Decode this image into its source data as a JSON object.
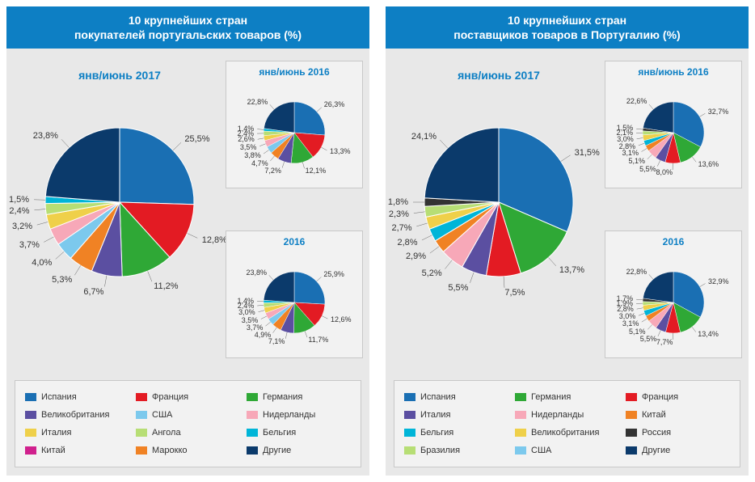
{
  "panels": [
    {
      "title_line1": "10 крупнейших стран",
      "title_line2": "покупателей португальских товаров (%)",
      "main": {
        "title": "янв/июнь 2017",
        "type": "pie",
        "radius": 92,
        "slices": [
          {
            "label": "25,5%",
            "value": 25.5,
            "color": "#1a6fb3"
          },
          {
            "label": "12,8%",
            "value": 12.8,
            "color": "#e31b23"
          },
          {
            "label": "11,2%",
            "value": 11.2,
            "color": "#2fa836"
          },
          {
            "label": "6,7%",
            "value": 6.7,
            "color": "#5b4fa1"
          },
          {
            "label": "5,3%",
            "value": 5.3,
            "color": "#f08224"
          },
          {
            "label": "4,0%",
            "value": 4.0,
            "color": "#7cc9ed"
          },
          {
            "label": "3,7%",
            "value": 3.7,
            "color": "#f7a8b8"
          },
          {
            "label": "3,2%",
            "value": 3.2,
            "color": "#efd04a"
          },
          {
            "label": "2,4%",
            "value": 2.4,
            "color": "#b7de75"
          },
          {
            "label": "1,5%",
            "value": 1.5,
            "color": "#00b5d8"
          },
          {
            "label": "23,8%",
            "value": 23.8,
            "color": "#0b3a6b"
          }
        ]
      },
      "small1": {
        "title": "янв/июнь 2016",
        "type": "pie",
        "radius": 38,
        "slices": [
          {
            "label": "26,3%",
            "value": 26.3,
            "color": "#1a6fb3"
          },
          {
            "label": "13,3%",
            "value": 13.3,
            "color": "#e31b23"
          },
          {
            "label": "12,1%",
            "value": 12.1,
            "color": "#2fa836"
          },
          {
            "label": "7,2%",
            "value": 7.2,
            "color": "#5b4fa1"
          },
          {
            "label": "4,7%",
            "value": 4.7,
            "color": "#f08224"
          },
          {
            "label": "3,8%",
            "value": 3.8,
            "color": "#7cc9ed"
          },
          {
            "label": "3,5%",
            "value": 3.5,
            "color": "#f7a8b8"
          },
          {
            "label": "2,6%",
            "value": 2.6,
            "color": "#efd04a"
          },
          {
            "label": "2,4%",
            "value": 2.4,
            "color": "#b7de75"
          },
          {
            "label": "1,4%",
            "value": 1.4,
            "color": "#00b5d8"
          },
          {
            "label": "22,8%",
            "value": 22.8,
            "color": "#0b3a6b"
          }
        ]
      },
      "small2": {
        "title": "2016",
        "type": "pie",
        "radius": 38,
        "slices": [
          {
            "label": "25,9%",
            "value": 25.9,
            "color": "#1a6fb3"
          },
          {
            "label": "12,6%",
            "value": 12.6,
            "color": "#e31b23"
          },
          {
            "label": "11,7%",
            "value": 11.7,
            "color": "#2fa836"
          },
          {
            "label": "7,1%",
            "value": 7.1,
            "color": "#5b4fa1"
          },
          {
            "label": "4,9%",
            "value": 4.9,
            "color": "#f08224"
          },
          {
            "label": "3,7%",
            "value": 3.7,
            "color": "#7cc9ed"
          },
          {
            "label": "3,5%",
            "value": 3.5,
            "color": "#f7a8b8"
          },
          {
            "label": "3,0%",
            "value": 3.0,
            "color": "#efd04a"
          },
          {
            "label": "2,4%",
            "value": 2.4,
            "color": "#b7de75"
          },
          {
            "label": "1,4%",
            "value": 1.4,
            "color": "#00b5d8"
          },
          {
            "label": "23,8%",
            "value": 23.8,
            "color": "#0b3a6b"
          }
        ]
      },
      "legend": [
        {
          "label": "Испания",
          "color": "#1a6fb3"
        },
        {
          "label": "Франция",
          "color": "#e31b23"
        },
        {
          "label": "Германия",
          "color": "#2fa836"
        },
        {
          "label": "Великобритания",
          "color": "#5b4fa1"
        },
        {
          "label": "США",
          "color": "#7cc9ed"
        },
        {
          "label": "Нидерланды",
          "color": "#f7a8b8"
        },
        {
          "label": "Италия",
          "color": "#efd04a"
        },
        {
          "label": "Ангола",
          "color": "#b7de75"
        },
        {
          "label": "Бельгия",
          "color": "#00b5d8"
        },
        {
          "label": "Китай",
          "color": "#d0208d"
        },
        {
          "label": "Марокко",
          "color": "#f08224"
        },
        {
          "label": "Другие",
          "color": "#0b3a6b"
        }
      ]
    },
    {
      "title_line1": "10 крупнейших стран",
      "title_line2": "поставщиков товаров в Португалию (%)",
      "main": {
        "title": "янв/июнь 2017",
        "type": "pie",
        "radius": 92,
        "slices": [
          {
            "label": "31,5%",
            "value": 31.5,
            "color": "#1a6fb3"
          },
          {
            "label": "13,7%",
            "value": 13.7,
            "color": "#2fa836"
          },
          {
            "label": "7,5%",
            "value": 7.5,
            "color": "#e31b23"
          },
          {
            "label": "5,5%",
            "value": 5.5,
            "color": "#5b4fa1"
          },
          {
            "label": "5,2%",
            "value": 5.2,
            "color": "#f7a8b8"
          },
          {
            "label": "2,9%",
            "value": 2.9,
            "color": "#f08224"
          },
          {
            "label": "2,8%",
            "value": 2.8,
            "color": "#00b5d8"
          },
          {
            "label": "2,7%",
            "value": 2.7,
            "color": "#efd04a"
          },
          {
            "label": "2,3%",
            "value": 2.3,
            "color": "#b7de75"
          },
          {
            "label": "1,8%",
            "value": 1.8,
            "color": "#333333"
          },
          {
            "label": "24,1%",
            "value": 24.1,
            "color": "#0b3a6b"
          }
        ]
      },
      "small1": {
        "title": "янв/июнь 2016",
        "type": "pie",
        "radius": 38,
        "slices": [
          {
            "label": "32,7%",
            "value": 32.7,
            "color": "#1a6fb3"
          },
          {
            "label": "13,6%",
            "value": 13.6,
            "color": "#2fa836"
          },
          {
            "label": "8,0%",
            "value": 8.0,
            "color": "#e31b23"
          },
          {
            "label": "5,5%",
            "value": 5.5,
            "color": "#5b4fa1"
          },
          {
            "label": "5,1%",
            "value": 5.1,
            "color": "#f7a8b8"
          },
          {
            "label": "3,1%",
            "value": 3.1,
            "color": "#f08224"
          },
          {
            "label": "2,8%",
            "value": 2.8,
            "color": "#00b5d8"
          },
          {
            "label": "3,0%",
            "value": 3.0,
            "color": "#efd04a"
          },
          {
            "label": "2,1%",
            "value": 2.1,
            "color": "#b7de75"
          },
          {
            "label": "1,5%",
            "value": 1.5,
            "color": "#333333"
          },
          {
            "label": "22,6%",
            "value": 22.6,
            "color": "#0b3a6b"
          }
        ]
      },
      "small2": {
        "title": "2016",
        "type": "pie",
        "radius": 38,
        "slices": [
          {
            "label": "32,9%",
            "value": 32.9,
            "color": "#1a6fb3"
          },
          {
            "label": "13,4%",
            "value": 13.4,
            "color": "#2fa836"
          },
          {
            "label": "7,7%",
            "value": 7.7,
            "color": "#e31b23"
          },
          {
            "label": "5,5%",
            "value": 5.5,
            "color": "#5b4fa1"
          },
          {
            "label": "5,1%",
            "value": 5.1,
            "color": "#f7a8b8"
          },
          {
            "label": "3,1%",
            "value": 3.1,
            "color": "#f08224"
          },
          {
            "label": "3,0%",
            "value": 3.0,
            "color": "#00b5d8"
          },
          {
            "label": "2,8%",
            "value": 2.8,
            "color": "#efd04a"
          },
          {
            "label": "1,9%",
            "value": 1.9,
            "color": "#b7de75"
          },
          {
            "label": "1,7%",
            "value": 1.7,
            "color": "#333333"
          },
          {
            "label": "22,8%",
            "value": 22.8,
            "color": "#0b3a6b"
          }
        ]
      },
      "legend": [
        {
          "label": "Испания",
          "color": "#1a6fb3"
        },
        {
          "label": "Германия",
          "color": "#2fa836"
        },
        {
          "label": "Франция",
          "color": "#e31b23"
        },
        {
          "label": "Италия",
          "color": "#5b4fa1"
        },
        {
          "label": "Нидерланды",
          "color": "#f7a8b8"
        },
        {
          "label": "Китай",
          "color": "#f08224"
        },
        {
          "label": "Бельгия",
          "color": "#00b5d8"
        },
        {
          "label": "Великобритания",
          "color": "#efd04a"
        },
        {
          "label": "Россия",
          "color": "#333333"
        },
        {
          "label": "Бразилия",
          "color": "#b7de75"
        },
        {
          "label": "США",
          "color": "#7cc9ed"
        },
        {
          "label": "Другие",
          "color": "#0b3a6b"
        }
      ]
    }
  ]
}
